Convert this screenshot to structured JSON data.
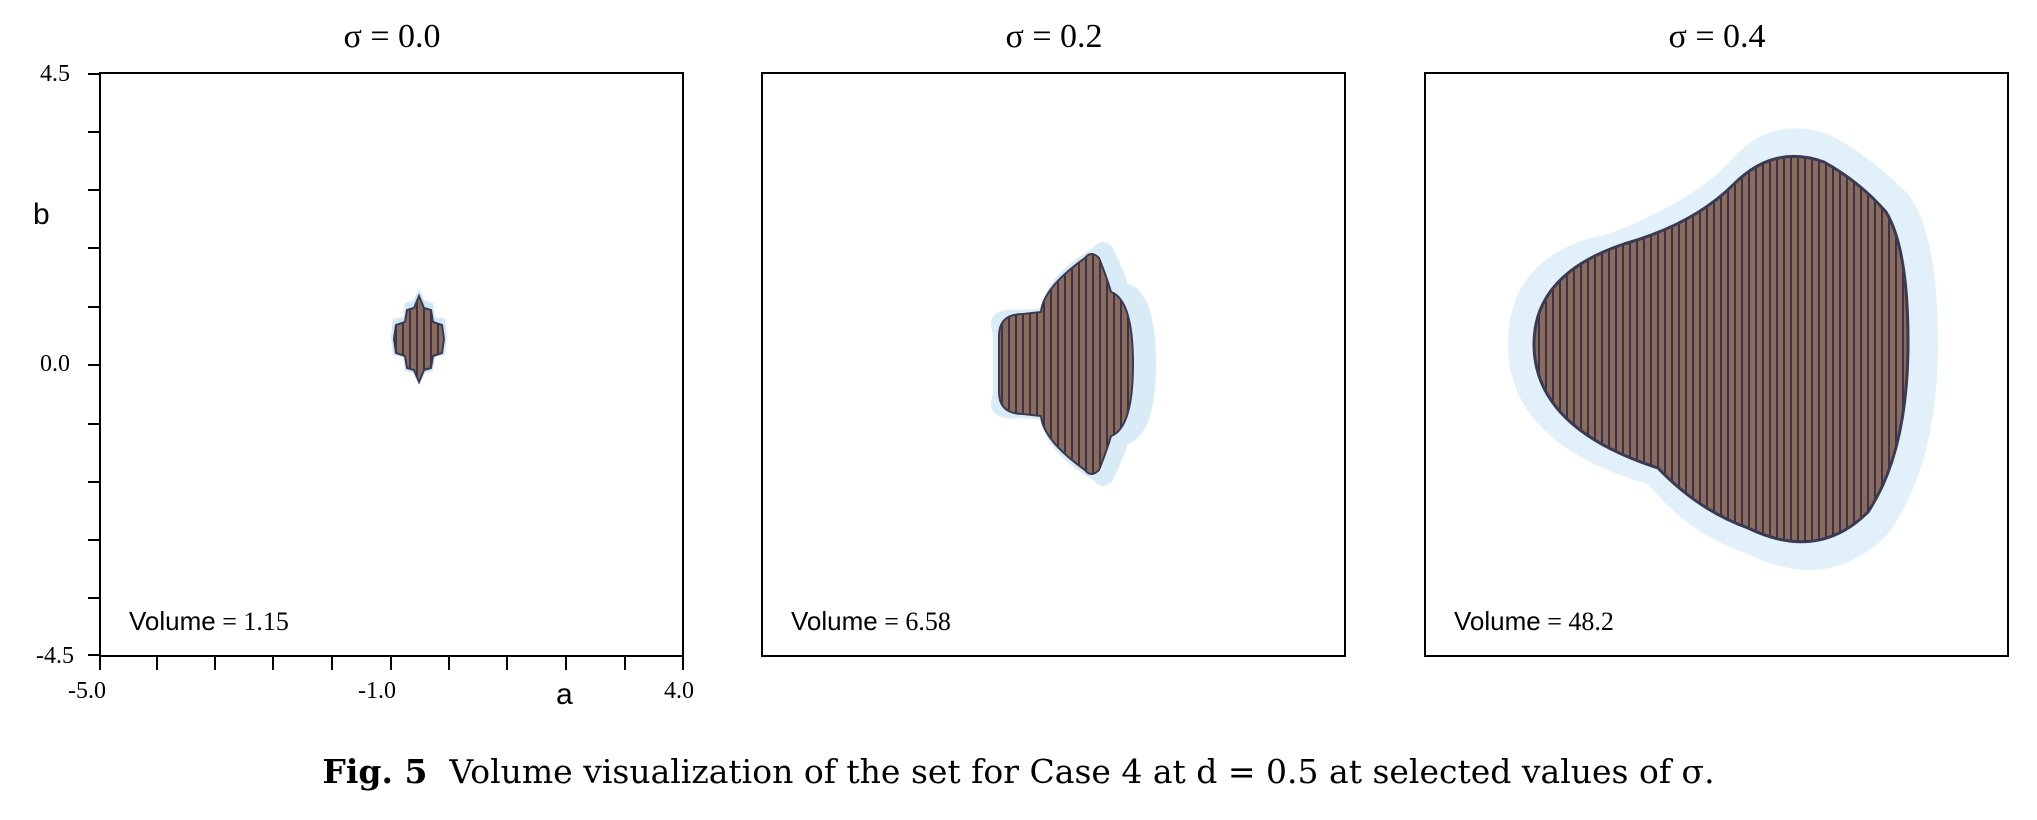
{
  "panels": [
    {
      "title": "σ = 0.0",
      "volume_label": "Volume",
      "volume_value": "= 1.15",
      "extent_a": [
        -0.45,
        0.45
      ],
      "extent_b": [
        -1.1,
        1.1
      ],
      "fill": "#7a5a4e"
    },
    {
      "title": "σ = 0.2",
      "volume_label": "Volume",
      "volume_value": "= 6.58",
      "extent_a": [
        -1.8,
        1.8
      ],
      "extent_b": [
        -1.6,
        1.6
      ],
      "fill": "#7a5a4e"
    },
    {
      "title": "σ = 0.4",
      "volume_label": "Volume",
      "volume_value": "= 48.2",
      "extent_a": [
        -4.2,
        4.2
      ],
      "extent_b": [
        -3.7,
        3.7
      ],
      "fill": "#7a5a4e"
    }
  ],
  "axes": {
    "xlabel": "a",
    "ylabel": "b",
    "x_ticks": [
      "-5.0",
      "-1.0",
      "4.0"
    ],
    "y_ticks": [
      "4.5",
      "0.0",
      "-4.5"
    ],
    "xlim": [
      -5.0,
      4.0
    ],
    "ylim": [
      -4.5,
      4.5
    ]
  },
  "caption": {
    "fig_label": "Fig. 5",
    "text": "Volume visualization of the set for Case 4 at d = 0.5 at selected values of σ."
  },
  "colors": {
    "body": "#6e4f45",
    "edge": "#4f6d9e",
    "halo": "#a9d3ee"
  }
}
